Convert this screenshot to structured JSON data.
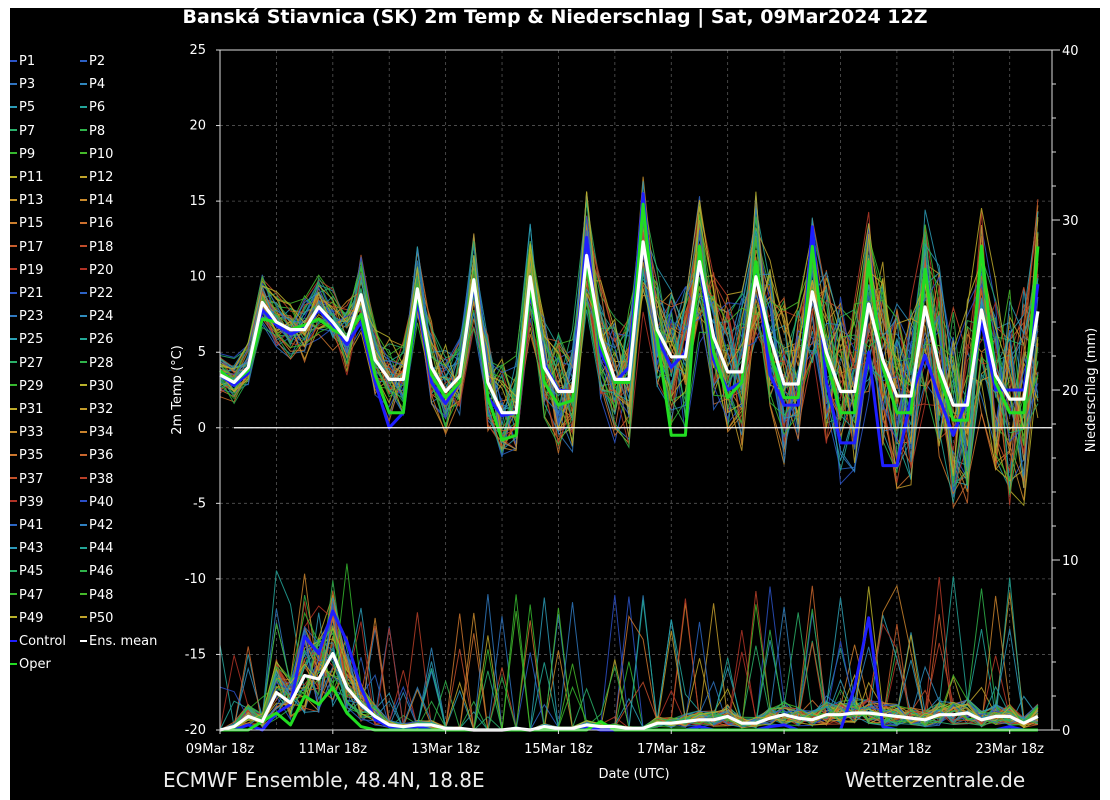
{
  "header": {
    "title": "Banská Štiavnica  (SK)  2m Temp & Niederschlag | Sat, 09Mar2024 12Z"
  },
  "footer": {
    "source": "ECMWF Ensemble, 48.4N, 18.8E",
    "site": "Wetterzentrale.de"
  },
  "legend": {
    "items": [
      {
        "label": "P1",
        "color": "#2b54c8"
      },
      {
        "label": "P2",
        "color": "#2c60c4"
      },
      {
        "label": "P3",
        "color": "#2f73c0"
      },
      {
        "label": "P4",
        "color": "#2f86bd"
      },
      {
        "label": "P5",
        "color": "#2b9bb6"
      },
      {
        "label": "P6",
        "color": "#23a59a"
      },
      {
        "label": "P7",
        "color": "#2ab06a"
      },
      {
        "label": "P8",
        "color": "#2fb34a"
      },
      {
        "label": "P9",
        "color": "#35b72e"
      },
      {
        "label": "P10",
        "color": "#45b82a"
      },
      {
        "label": "P11",
        "color": "#b8b22a"
      },
      {
        "label": "P12",
        "color": "#c0a42b"
      },
      {
        "label": "P13",
        "color": "#c6962b"
      },
      {
        "label": "P14",
        "color": "#c98a2c"
      },
      {
        "label": "P15",
        "color": "#cc7e2d"
      },
      {
        "label": "P16",
        "color": "#cc6f2d"
      },
      {
        "label": "P17",
        "color": "#c85d2c"
      },
      {
        "label": "P18",
        "color": "#c24c2a"
      },
      {
        "label": "P19",
        "color": "#b83b28"
      },
      {
        "label": "P20",
        "color": "#b03226"
      },
      {
        "label": "P21",
        "color": "#2b54c8"
      },
      {
        "label": "P22",
        "color": "#2c62c4"
      },
      {
        "label": "P23",
        "color": "#2f79c0"
      },
      {
        "label": "P24",
        "color": "#2f8cbd"
      },
      {
        "label": "P25",
        "color": "#2ba0b4"
      },
      {
        "label": "P26",
        "color": "#23a896"
      },
      {
        "label": "P27",
        "color": "#2ab068"
      },
      {
        "label": "P28",
        "color": "#2fb34a"
      },
      {
        "label": "P29",
        "color": "#35b72e"
      },
      {
        "label": "P30",
        "color": "#b8b22a"
      },
      {
        "label": "P31",
        "color": "#bdaa2a"
      },
      {
        "label": "P32",
        "color": "#c39c2b"
      },
      {
        "label": "P33",
        "color": "#c68e2c"
      },
      {
        "label": "P34",
        "color": "#c9822c"
      },
      {
        "label": "P35",
        "color": "#cc762d"
      },
      {
        "label": "P36",
        "color": "#ca662d"
      },
      {
        "label": "P37",
        "color": "#c3512a"
      },
      {
        "label": "P38",
        "color": "#b83f28"
      },
      {
        "label": "P39",
        "color": "#b03226"
      },
      {
        "label": "P40",
        "color": "#2b4fc8"
      },
      {
        "label": "P41",
        "color": "#2c66c4"
      },
      {
        "label": "P42",
        "color": "#2f80c0"
      },
      {
        "label": "P43",
        "color": "#2c98b8"
      },
      {
        "label": "P44",
        "color": "#23a596"
      },
      {
        "label": "P45",
        "color": "#2ab068"
      },
      {
        "label": "P46",
        "color": "#2fb34a"
      },
      {
        "label": "P47",
        "color": "#35b72e"
      },
      {
        "label": "P48",
        "color": "#45b82a"
      },
      {
        "label": "P49",
        "color": "#b8b22a"
      },
      {
        "label": "P50",
        "color": "#c0a42b"
      },
      {
        "label": "Control",
        "color": "#1e1eff"
      },
      {
        "label": "Ens. mean",
        "color": "#ffffff"
      },
      {
        "label": "Oper",
        "color": "#22dd22"
      }
    ]
  },
  "chart_data": {
    "type": "line",
    "title": "Banská Štiavnica  (SK)  2m Temp & Niederschlag | Sat, 09Mar2024 12Z",
    "xlabel": "Date (UTC)",
    "ylabel": "2m Temp (°C)",
    "y2label": "Niederschlag (mm)",
    "ylim": [
      -20,
      25
    ],
    "y2lim": [
      0,
      40
    ],
    "yticks": [
      "25",
      "20",
      "15",
      "10",
      "5",
      "0",
      "-5",
      "-10",
      "-15",
      "-20"
    ],
    "y2ticks": [
      "40",
      "30",
      "20",
      "10",
      "0"
    ],
    "xticks": [
      "09Mar 18z",
      "11Mar 18z",
      "13Mar 18z",
      "15Mar 18z",
      "17Mar 18z",
      "19Mar 18z",
      "21Mar 18z",
      "23Mar 18z"
    ],
    "x_hours_range": [
      0,
      354
    ],
    "x_step_hours": 6,
    "series": [
      {
        "name": "Ens. mean temperature",
        "axis": "temp",
        "color": "#ffffff",
        "values": [
          3.5,
          3.0,
          4.0,
          8.3,
          7.0,
          6.5,
          6.5,
          8.0,
          7.0,
          5.8,
          8.8,
          4.5,
          3.2,
          3.2,
          9.2,
          4.0,
          2.4,
          3.4,
          9.8,
          3.0,
          1.0,
          1.0,
          10.0,
          4.0,
          2.4,
          2.4,
          11.4,
          6.0,
          3.2,
          3.2,
          12.3,
          6.5,
          4.7,
          4.7,
          11.0,
          6.0,
          3.7,
          3.7,
          10.0,
          6.0,
          2.9,
          2.9,
          9.0,
          5.0,
          2.4,
          2.4,
          8.2,
          4.5,
          2.1,
          2.1,
          8.0,
          4.0,
          1.5,
          1.5,
          7.8,
          3.5,
          1.9,
          1.9,
          7.7
        ]
      },
      {
        "name": "Control temperature",
        "axis": "temp",
        "color": "#1e1eff",
        "values": [
          3.5,
          2.8,
          3.6,
          7.8,
          6.8,
          6.2,
          6.6,
          7.8,
          6.8,
          5.5,
          7.0,
          3.0,
          0.0,
          1.0,
          8.5,
          3.0,
          1.6,
          3.0,
          9.5,
          2.0,
          0.8,
          1.0,
          9.0,
          4.2,
          2.5,
          2.4,
          12.6,
          5.0,
          3.0,
          4.0,
          15.5,
          6.0,
          4.0,
          5.0,
          11.0,
          4.5,
          2.5,
          3.0,
          10.8,
          3.5,
          1.5,
          1.5,
          13.3,
          3.0,
          -1.0,
          -1.0,
          5.0,
          -2.5,
          -2.5,
          2.0,
          4.8,
          2.0,
          -0.5,
          2.0,
          7.0,
          2.5,
          2.5,
          2.5,
          9.5
        ]
      },
      {
        "name": "Oper temperature",
        "axis": "temp",
        "color": "#22dd22",
        "values": [
          3.8,
          3.0,
          3.8,
          7.2,
          7.0,
          6.5,
          6.8,
          7.2,
          6.5,
          6.0,
          7.5,
          3.5,
          1.0,
          1.0,
          9.0,
          3.5,
          2.0,
          3.0,
          9.8,
          2.0,
          -0.8,
          -0.5,
          9.5,
          3.0,
          1.5,
          1.8,
          11.0,
          5.5,
          3.0,
          3.0,
          14.8,
          6.0,
          -0.5,
          -0.5,
          12.0,
          5.0,
          2.0,
          3.0,
          11.0,
          5.0,
          2.0,
          2.0,
          12.0,
          4.5,
          1.0,
          1.0,
          11.0,
          4.0,
          1.0,
          1.0,
          10.5,
          3.5,
          0.5,
          0.5,
          12.0,
          3.0,
          1.0,
          1.0,
          12.0
        ]
      },
      {
        "name": "Ens. mean precipitation",
        "axis": "precip",
        "color": "#ffffff",
        "values": [
          0.0,
          0.2,
          0.8,
          0.5,
          2.2,
          1.6,
          3.2,
          3.0,
          4.5,
          2.5,
          1.5,
          0.8,
          0.3,
          0.2,
          0.3,
          0.3,
          0.1,
          0.1,
          0.0,
          0.0,
          0.0,
          0.1,
          0.0,
          0.2,
          0.1,
          0.1,
          0.3,
          0.2,
          0.2,
          0.1,
          0.1,
          0.4,
          0.4,
          0.5,
          0.6,
          0.6,
          0.8,
          0.4,
          0.4,
          0.7,
          0.9,
          0.7,
          0.6,
          0.9,
          0.9,
          1.0,
          1.0,
          0.9,
          0.8,
          0.7,
          0.6,
          0.9,
          0.9,
          1.0,
          0.6,
          0.8,
          0.8,
          0.4,
          0.8
        ]
      },
      {
        "name": "Control precipitation",
        "axis": "precip",
        "color": "#1e1eff",
        "values": [
          0.0,
          0.0,
          0.3,
          0.0,
          1.0,
          1.5,
          5.5,
          4.5,
          7.0,
          5.2,
          2.5,
          0.6,
          0.2,
          0.0,
          0.2,
          0.0,
          0.0,
          0.0,
          0.0,
          0.0,
          0.0,
          0.0,
          0.0,
          0.0,
          0.0,
          0.0,
          0.2,
          0.0,
          0.0,
          0.0,
          0.0,
          0.0,
          0.0,
          0.0,
          0.2,
          0.0,
          0.0,
          0.0,
          0.0,
          0.2,
          0.3,
          0.0,
          0.0,
          0.0,
          0.0,
          2.5,
          6.6,
          0.2,
          0.0,
          0.0,
          0.0,
          0.0,
          0.0,
          0.0,
          0.0,
          0.0,
          0.2,
          0.0,
          0.0
        ]
      },
      {
        "name": "Oper precipitation",
        "axis": "precip",
        "color": "#22dd22",
        "values": [
          0.0,
          0.0,
          0.0,
          0.5,
          1.0,
          0.3,
          2.0,
          1.5,
          2.5,
          1.0,
          0.2,
          0.0,
          0.0,
          0.0,
          0.0,
          0.0,
          0.0,
          0.0,
          0.0,
          0.0,
          0.0,
          0.0,
          0.0,
          0.0,
          0.0,
          0.0,
          0.0,
          0.5,
          0.0,
          0.0,
          0.0,
          0.0,
          0.0,
          0.0,
          0.0,
          0.0,
          0.0,
          0.0,
          0.0,
          0.0,
          0.0,
          0.0,
          0.0,
          0.0,
          0.0,
          0.0,
          0.0,
          0.0,
          0.0,
          0.0,
          0.0,
          0.0,
          0.0,
          0.0,
          0.0,
          0.0,
          0.0,
          0.0,
          0.0
        ]
      }
    ]
  }
}
